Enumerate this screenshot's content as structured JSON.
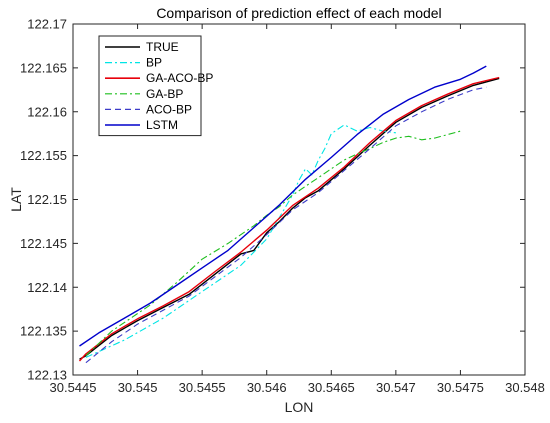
{
  "chart_data": {
    "type": "line",
    "title": "Comparison of prediction effect of each model",
    "xlabel": "LON",
    "ylabel": "LAT",
    "xlim": [
      30.5445,
      30.548
    ],
    "ylim": [
      122.13,
      122.17
    ],
    "xticks": [
      "30.5445",
      "30.545",
      "30.5455",
      "30.546",
      "30.5465",
      "30.547",
      "30.5475",
      "30.548"
    ],
    "yticks": [
      "122.13",
      "122.135",
      "122.14",
      "122.145",
      "122.15",
      "122.155",
      "122.16",
      "122.165",
      "122.17"
    ],
    "grid": false,
    "legend_position": "top-left",
    "series": [
      {
        "name": "TRUE",
        "color": "#000000",
        "dash": "solid",
        "x": [
          30.54455,
          30.5446,
          30.5448,
          30.545,
          30.5452,
          30.5454,
          30.5456,
          30.5458,
          30.5459,
          30.546,
          30.5461,
          30.5462,
          30.5463,
          30.5464,
          30.5466,
          30.5468,
          30.547,
          30.5472,
          30.5474,
          30.5476,
          30.5478
        ],
        "y": [
          122.1318,
          122.1322,
          122.1345,
          122.1362,
          122.1377,
          122.1392,
          122.1415,
          122.1438,
          122.1442,
          122.1462,
          122.1475,
          122.149,
          122.1502,
          122.151,
          122.1535,
          122.1562,
          122.1588,
          122.1605,
          122.1618,
          122.163,
          122.1638
        ]
      },
      {
        "name": "BP",
        "color": "#00e5e5",
        "dash": "dashdot",
        "x": [
          30.5446,
          30.5449,
          30.5452,
          30.5455,
          30.5458,
          30.546,
          30.5461,
          30.5462,
          30.54625,
          30.5463,
          30.54635,
          30.5464,
          30.54645,
          30.5465,
          30.5466,
          30.5467,
          30.5468,
          30.5469,
          30.547
        ],
        "y": [
          122.132,
          122.134,
          122.1365,
          122.1395,
          122.1425,
          122.1455,
          122.148,
          122.1505,
          122.1522,
          122.1535,
          122.1528,
          122.1545,
          122.1558,
          122.1575,
          122.1585,
          122.1578,
          122.1582,
          122.1578,
          122.1576
        ]
      },
      {
        "name": "GA-ACO-BP",
        "color": "#e8000b",
        "dash": "solid",
        "x": [
          30.54455,
          30.5446,
          30.5448,
          30.545,
          30.5452,
          30.5454,
          30.5456,
          30.5458,
          30.546,
          30.5462,
          30.5464,
          30.5466,
          30.5468,
          30.547,
          30.5472,
          30.5474,
          30.5476,
          30.5478
        ],
        "y": [
          122.1316,
          122.1324,
          122.1347,
          122.1364,
          122.1379,
          122.1395,
          122.1418,
          122.144,
          122.1465,
          122.1493,
          122.1513,
          122.1537,
          122.1565,
          122.159,
          122.1607,
          122.162,
          122.1632,
          122.1639
        ]
      },
      {
        "name": "GA-BP",
        "color": "#1fbf1f",
        "dash": "dashdot",
        "x": [
          30.5446,
          30.5448,
          30.5451,
          30.5453,
          30.5455,
          30.5457,
          30.5459,
          30.546,
          30.5461,
          30.5462,
          30.5463,
          30.5464,
          30.5465,
          30.5466,
          30.5467,
          30.5468,
          30.5469,
          30.547,
          30.5471,
          30.5472,
          30.5473,
          30.5474,
          30.5475
        ],
        "y": [
          122.1322,
          122.135,
          122.138,
          122.1405,
          122.1432,
          122.145,
          122.147,
          122.1482,
          122.1492,
          122.1505,
          122.1515,
          122.1525,
          122.1535,
          122.1545,
          122.1552,
          122.1558,
          122.1565,
          122.157,
          122.1572,
          122.1568,
          122.157,
          122.1574,
          122.1578
        ]
      },
      {
        "name": "ACO-BP",
        "color": "#3c3cc8",
        "dash": "dashed",
        "x": [
          30.5446,
          30.5448,
          30.545,
          30.5452,
          30.5454,
          30.5456,
          30.5458,
          30.546,
          30.5462,
          30.5464,
          30.5466,
          30.5468,
          30.547,
          30.5472,
          30.5474,
          30.5476,
          30.5477
        ],
        "y": [
          122.1314,
          122.1338,
          122.1358,
          122.1374,
          122.139,
          122.1412,
          122.1434,
          122.146,
          122.1488,
          122.1508,
          122.1533,
          122.1558,
          122.1584,
          122.16,
          122.1614,
          122.1625,
          122.1628
        ]
      },
      {
        "name": "LSTM",
        "color": "#0000cc",
        "dash": "solid",
        "x": [
          30.54455,
          30.5447,
          30.5449,
          30.5451,
          30.5453,
          30.5455,
          30.5457,
          30.5459,
          30.5461,
          30.5463,
          30.5465,
          30.5467,
          30.5469,
          30.5471,
          30.5473,
          30.5475,
          30.5476,
          30.5477
        ],
        "y": [
          122.1333,
          122.1348,
          122.1365,
          122.1382,
          122.1402,
          122.1422,
          122.1442,
          122.1468,
          122.1494,
          122.1523,
          122.1548,
          122.1574,
          122.1597,
          122.1614,
          122.1628,
          122.1637,
          122.1644,
          122.1652
        ]
      }
    ]
  }
}
